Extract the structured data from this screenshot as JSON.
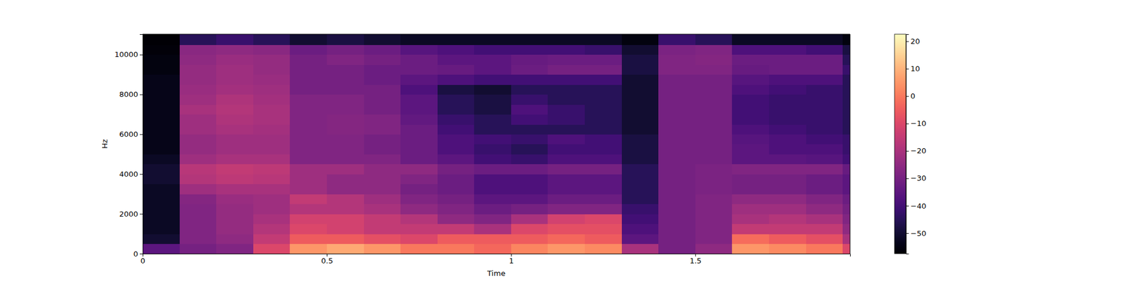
{
  "chart_data": {
    "type": "heatmap",
    "x_label": "Time",
    "y_label": "Hz",
    "color": "magma",
    "xlim": [
      0,
      1.92
    ],
    "xticks": [
      0,
      0.5,
      1,
      1.5
    ],
    "ylim": [
      0,
      11025
    ],
    "yticks": [
      0,
      2000,
      4000,
      6000,
      8000,
      10000
    ],
    "x": [
      0,
      0.1,
      0.2,
      0.3,
      0.4,
      0.5,
      0.6,
      0.7,
      0.8,
      0.9,
      1.0,
      1.1,
      1.2,
      1.3,
      1.4,
      1.5,
      1.6,
      1.7,
      1.8,
      1.9
    ],
    "y": [
      0,
      500,
      1000,
      1500,
      2000,
      2500,
      3000,
      3500,
      4000,
      4500,
      5000,
      5500,
      6000,
      6500,
      7000,
      7500,
      8000,
      8500,
      9000,
      9500,
      10000,
      10500
    ],
    "z": [
      [
        -35,
        -30,
        -28,
        -10,
        5,
        8,
        5,
        0,
        0,
        -3,
        2,
        5,
        3,
        -20,
        -30,
        -25,
        5,
        3,
        0,
        -10
      ],
      [
        -50,
        -28,
        -25,
        -15,
        -5,
        -5,
        -8,
        -10,
        -5,
        -5,
        -5,
        -3,
        -5,
        -35,
        -30,
        -28,
        -2,
        -5,
        -8,
        -20
      ],
      [
        -52,
        -28,
        -24,
        -18,
        -10,
        -12,
        -15,
        -15,
        -15,
        -20,
        -10,
        -8,
        -8,
        -38,
        -30,
        -28,
        -15,
        -15,
        -15,
        -25
      ],
      [
        -52,
        -28,
        -24,
        -20,
        -12,
        -12,
        -15,
        -18,
        -25,
        -28,
        -20,
        -12,
        -10,
        -40,
        -30,
        -28,
        -20,
        -18,
        -20,
        -28
      ],
      [
        -52,
        -28,
        -24,
        -22,
        -18,
        -18,
        -20,
        -25,
        -28,
        -32,
        -30,
        -28,
        -28,
        -42,
        -30,
        -28,
        -22,
        -22,
        -25,
        -30
      ],
      [
        -52,
        -27,
        -23,
        -22,
        -15,
        -18,
        -22,
        -28,
        -30,
        -35,
        -35,
        -32,
        -32,
        -45,
        -30,
        -28,
        -25,
        -25,
        -28,
        -32
      ],
      [
        -52,
        -22,
        -20,
        -20,
        -22,
        -25,
        -25,
        -30,
        -32,
        -38,
        -38,
        -35,
        -35,
        -45,
        -30,
        -29,
        -30,
        -30,
        -32,
        -35
      ],
      [
        -50,
        -18,
        -16,
        -17,
        -22,
        -25,
        -25,
        -28,
        -32,
        -38,
        -38,
        -35,
        -35,
        -45,
        -30,
        -29,
        -30,
        -30,
        -32,
        -35
      ],
      [
        -50,
        -17,
        -15,
        -16,
        -22,
        -22,
        -25,
        -25,
        -30,
        -32,
        -32,
        -30,
        -30,
        -45,
        -30,
        -29,
        -28,
        -28,
        -28,
        -33
      ],
      [
        -52,
        -22,
        -20,
        -20,
        -28,
        -28,
        -28,
        -32,
        -35,
        -40,
        -42,
        -38,
        -38,
        -48,
        -30,
        -30,
        -35,
        -35,
        -36,
        -40
      ],
      [
        -54,
        -24,
        -22,
        -22,
        -28,
        -28,
        -30,
        -32,
        -38,
        -42,
        -45,
        -40,
        -40,
        -48,
        -30,
        -30,
        -35,
        -38,
        -38,
        -42
      ],
      [
        -54,
        -24,
        -22,
        -22,
        -28,
        -28,
        -30,
        -32,
        -38,
        -40,
        -42,
        -38,
        -40,
        -48,
        -30,
        -30,
        -36,
        -38,
        -40,
        -42
      ],
      [
        -54,
        -22,
        -20,
        -21,
        -28,
        -27,
        -28,
        -32,
        -40,
        -45,
        -45,
        -45,
        -45,
        -50,
        -30,
        -30,
        -38,
        -40,
        -42,
        -45
      ],
      [
        -54,
        -22,
        -19,
        -20,
        -28,
        -27,
        -28,
        -34,
        -42,
        -45,
        -40,
        -42,
        -45,
        -50,
        -30,
        -30,
        -40,
        -42,
        -42,
        -45
      ],
      [
        -54,
        -20,
        -18,
        -20,
        -28,
        -28,
        -30,
        -35,
        -45,
        -48,
        -38,
        -42,
        -45,
        -50,
        -30,
        -30,
        -40,
        -42,
        -42,
        -45
      ],
      [
        -54,
        -22,
        -19,
        -21,
        -28,
        -28,
        -30,
        -35,
        -45,
        -48,
        -42,
        -45,
        -45,
        -50,
        -30,
        -30,
        -40,
        -42,
        -42,
        -45
      ],
      [
        -54,
        -23,
        -21,
        -22,
        -30,
        -30,
        -30,
        -38,
        -48,
        -50,
        -45,
        -45,
        -45,
        -50,
        -30,
        -30,
        -38,
        -40,
        -42,
        -45
      ],
      [
        -54,
        -24,
        -22,
        -23,
        -30,
        -30,
        -32,
        -35,
        -38,
        -40,
        -40,
        -40,
        -40,
        -50,
        -30,
        -30,
        -36,
        -38,
        -38,
        -45
      ],
      [
        -55,
        -24,
        -22,
        -24,
        -30,
        -30,
        -32,
        -32,
        -33,
        -35,
        -32,
        -30,
        -30,
        -48,
        -28,
        -28,
        -33,
        -32,
        -32,
        -42
      ],
      [
        -55,
        -25,
        -23,
        -24,
        -30,
        -28,
        -30,
        -32,
        -35,
        -35,
        -33,
        -32,
        -32,
        -48,
        -28,
        -27,
        -32,
        -32,
        -32,
        -45
      ],
      [
        -56,
        -26,
        -25,
        -26,
        -32,
        -30,
        -32,
        -36,
        -38,
        -40,
        -40,
        -40,
        -42,
        -50,
        -29,
        -28,
        -38,
        -38,
        -40,
        -48
      ],
      [
        -57,
        -45,
        -42,
        -45,
        -50,
        -48,
        -50,
        -52,
        -52,
        -52,
        -52,
        -52,
        -52,
        -55,
        -42,
        -45,
        -52,
        -52,
        -52,
        -55
      ]
    ],
    "colorbar": {
      "range": [
        -57.5,
        22.6
      ],
      "ticks": [
        {
          "value": -50,
          "label": "−50"
        },
        {
          "value": -40,
          "label": "−40"
        },
        {
          "value": -30,
          "label": "−30"
        },
        {
          "value": -20,
          "label": "−20"
        },
        {
          "value": -10,
          "label": "−10"
        },
        0,
        10,
        20
      ]
    }
  }
}
